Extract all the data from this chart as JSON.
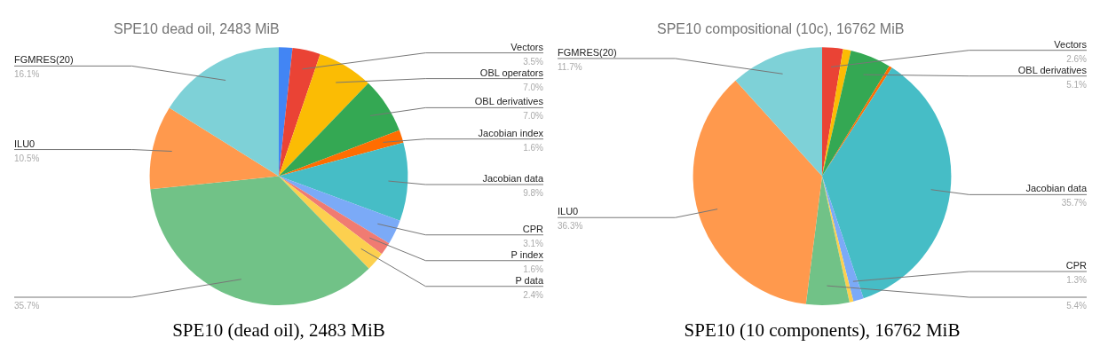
{
  "chart_data": [
    {
      "type": "pie",
      "title": "SPE10 dead oil, 2483 MiB",
      "annotations": [
        "SPE10 (dead oil), 2483 MiB"
      ],
      "categories": [
        null,
        "Vectors",
        "OBL operators",
        "OBL derivatives",
        "Jacobian index",
        "Jacobian data",
        "CPR",
        "P index",
        "P data",
        null,
        "ILU0",
        "FGMRES(20)"
      ],
      "values": [
        1.7,
        3.5,
        7.0,
        7.0,
        1.6,
        9.8,
        3.1,
        1.6,
        2.4,
        35.7,
        10.5,
        16.1
      ],
      "value_labels": [
        null,
        "3.5%",
        "7.0%",
        "7.0%",
        "1.6%",
        "9.8%",
        "3.1%",
        "1.6%",
        "2.4%",
        "35.7%",
        "10.5%",
        "16.1%"
      ],
      "colors": [
        "#4285f4",
        "#ea4335",
        "#fbbc04",
        "#34a853",
        "#ff6d01",
        "#46bdc6",
        "#7baaf7",
        "#f07b72",
        "#fcd04f",
        "#71c287",
        "#ff994d",
        "#7ed1d7"
      ],
      "legend": false
    },
    {
      "type": "pie",
      "title": "SPE10 compositional (10c), 16762 MiB",
      "annotations": [
        "SPE10 (10 components), 16762 MiB"
      ],
      "categories": [
        "Vectors",
        null,
        "OBL derivatives",
        null,
        "Jacobian data",
        "CPR",
        null,
        null,
        "ILU0",
        "FGMRES(20)"
      ],
      "values": [
        2.6,
        1.0,
        5.1,
        0.4,
        35.7,
        1.3,
        0.5,
        5.4,
        36.3,
        11.7
      ],
      "value_labels": [
        "2.6%",
        null,
        "5.1%",
        null,
        "35.7%",
        "1.3%",
        null,
        "5.4%",
        "36.3%",
        "11.7%"
      ],
      "colors": [
        "#ea4335",
        "#fbbc04",
        "#34a853",
        "#ff6d01",
        "#46bdc6",
        "#7baaf7",
        "#fcd04f",
        "#71c287",
        "#ff994d",
        "#7ed1d7"
      ],
      "legend": false
    }
  ]
}
